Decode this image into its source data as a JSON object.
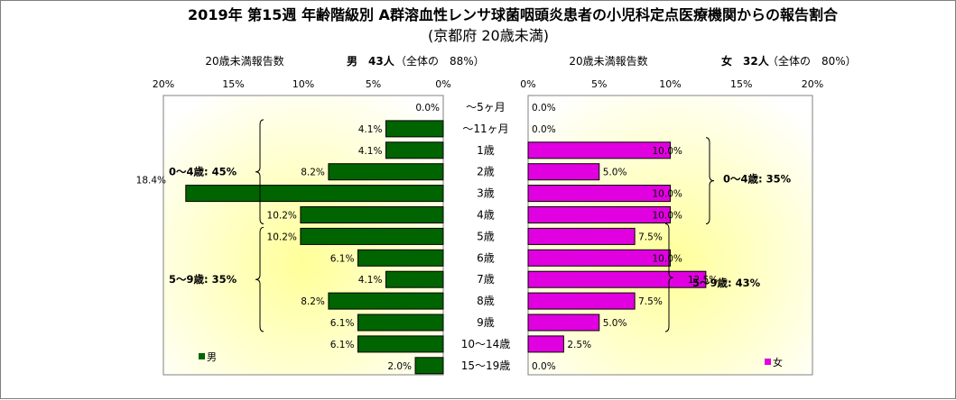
{
  "chart_data": {
    "type": "bar",
    "title": "2019年 第15週 年齢階級別 A群溶血性レンサ球菌咽頭炎患者の小児科定点医療機関からの報告割合",
    "subtitle": "(京都府 20歳未満)",
    "categories": [
      "～5ヶ月",
      "～11ヶ月",
      "1歳",
      "2歳",
      "3歳",
      "4歳",
      "5歳",
      "6歳",
      "7歳",
      "8歳",
      "9歳",
      "10～14歳",
      "15～19歳"
    ],
    "series": [
      {
        "name": "男",
        "values": [
          0.0,
          4.1,
          4.1,
          8.2,
          18.4,
          10.2,
          10.2,
          6.1,
          4.1,
          8.2,
          6.1,
          6.1,
          2.0
        ],
        "labels": [
          "0.0%",
          "4.1%",
          "4.1%",
          "8.2%",
          "18.4%",
          "10.2%",
          "10.2%",
          "6.1%",
          "4.1%",
          "8.2%",
          "6.1%",
          "6.1%",
          "2.0%"
        ],
        "color": "#006400"
      },
      {
        "name": "女",
        "values": [
          0.0,
          0.0,
          10.0,
          5.0,
          10.0,
          10.0,
          7.5,
          10.0,
          12.5,
          7.5,
          5.0,
          2.5,
          0.0
        ],
        "labels": [
          "0.0%",
          "0.0%",
          "10.0%",
          "5.0%",
          "10.0%",
          "10.0%",
          "7.5%",
          "10.0%",
          "12.5%",
          "7.5%",
          "5.0%",
          "2.5%",
          "0.0%"
        ],
        "color": "#e000e0"
      }
    ],
    "x_range": [
      0,
      20
    ],
    "left_ticks": [
      "20%",
      "15%",
      "10%",
      "5%",
      "0%"
    ],
    "right_ticks": [
      "0%",
      "5%",
      "10%",
      "15%",
      "20%"
    ],
    "male_header": {
      "label": "20歳未満報告数",
      "summary": "男　43人",
      "ratio": "（全体の　88%）"
    },
    "female_header": {
      "label": "20歳未満報告数",
      "summary": "女　32人",
      "ratio": "（全体の　80%）"
    },
    "groups": {
      "male": [
        {
          "label": "0～4歳: 45%",
          "from": 1,
          "to": 5
        },
        {
          "label": "5～9歳: 35%",
          "from": 6,
          "to": 10
        }
      ],
      "female": [
        {
          "label": "0～4歳: 35%",
          "from": 2,
          "to": 5
        },
        {
          "label": "5～9歳: 43%",
          "from": 6,
          "to": 10
        }
      ]
    },
    "legend_male": "男",
    "legend_female": "女"
  }
}
